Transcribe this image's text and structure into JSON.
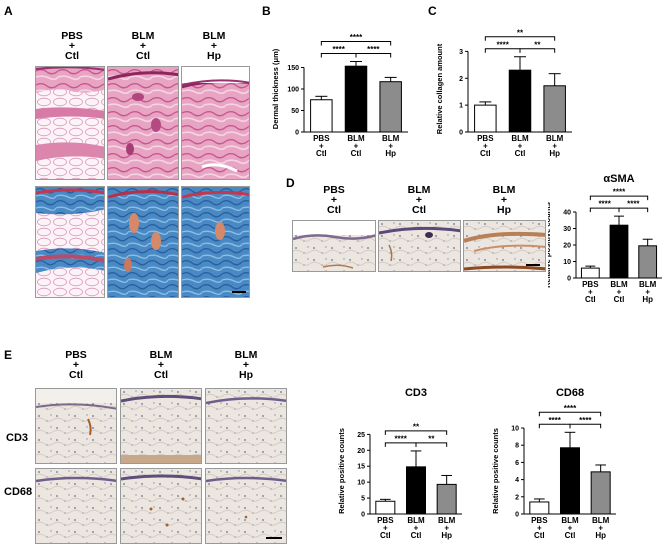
{
  "panels": {
    "A": {
      "letter": "A",
      "column_headers": [
        {
          "top": "PBS",
          "mid": "+",
          "bot": "Ctl"
        },
        {
          "top": "BLM",
          "mid": "+",
          "bot": "Ctl"
        },
        {
          "top": "BLM",
          "mid": "+",
          "bot": "Hp"
        }
      ]
    },
    "B": {
      "letter": "B"
    },
    "C": {
      "letter": "C"
    },
    "D": {
      "letter": "D",
      "column_headers": [
        {
          "top": "PBS",
          "mid": "+",
          "bot": "Ctl"
        },
        {
          "top": "BLM",
          "mid": "+",
          "bot": "Ctl"
        },
        {
          "top": "BLM",
          "mid": "+",
          "bot": "Hp"
        }
      ]
    },
    "E": {
      "letter": "E",
      "column_headers": [
        {
          "top": "PBS",
          "mid": "+",
          "bot": "Ctl"
        },
        {
          "top": "BLM",
          "mid": "+",
          "bot": "Ctl"
        },
        {
          "top": "BLM",
          "mid": "+",
          "bot": "Hp"
        }
      ],
      "row_labels": [
        "CD3",
        "CD68"
      ]
    }
  },
  "colors": {
    "white_bar": "#ffffff",
    "black_bar": "#000000",
    "gray_bar": "#8c8c8c",
    "he_pink": "#e5a3c0",
    "trichrome_blue": "#4a8ac4",
    "ihc_background": "#ece6e0"
  },
  "chart_data": [
    {
      "id": "B",
      "type": "bar",
      "categories": [
        [
          "PBS",
          "+",
          "Ctl"
        ],
        [
          "BLM",
          "+",
          "Ctl"
        ],
        [
          "BLM",
          "+",
          "Hp"
        ]
      ],
      "values": [
        75,
        153,
        117
      ],
      "errors": [
        8,
        11,
        10
      ],
      "ylabel": "Dermal thickness (μm)",
      "ylim": [
        0,
        200
      ],
      "yticks": [
        0,
        50,
        100,
        150
      ],
      "significance": [
        {
          "from": 0,
          "to": 1,
          "label": "****"
        },
        {
          "from": 1,
          "to": 2,
          "label": "****"
        },
        {
          "from": 0,
          "to": 2,
          "label": "****"
        }
      ]
    },
    {
      "id": "C",
      "type": "bar",
      "categories": [
        [
          "PBS",
          "+",
          "Ctl"
        ],
        [
          "BLM",
          "+",
          "Ctl"
        ],
        [
          "BLM",
          "+",
          "Hp"
        ]
      ],
      "values": [
        1.0,
        2.3,
        1.72
      ],
      "errors": [
        0.12,
        0.5,
        0.45
      ],
      "ylabel": "Relative collagen amount",
      "ylim": [
        0,
        3.2
      ],
      "yticks": [
        0,
        1,
        2,
        3
      ],
      "significance": [
        {
          "from": 0,
          "to": 1,
          "label": "****"
        },
        {
          "from": 1,
          "to": 2,
          "label": "**"
        },
        {
          "from": 0,
          "to": 2,
          "label": "**"
        }
      ]
    },
    {
      "id": "D",
      "type": "bar",
      "title": "αSMA",
      "categories": [
        [
          "PBS",
          "+",
          "Ctl"
        ],
        [
          "BLM",
          "+",
          "Ctl"
        ],
        [
          "BLM",
          "+",
          "Hp"
        ]
      ],
      "values": [
        6,
        32,
        19.5
      ],
      "errors": [
        1.2,
        5.5,
        4
      ],
      "ylabel": "Relative positive counts",
      "ylim": [
        0,
        40
      ],
      "yticks": [
        0,
        10,
        20,
        30,
        40
      ],
      "significance": [
        {
          "from": 0,
          "to": 1,
          "label": "****"
        },
        {
          "from": 1,
          "to": 2,
          "label": "****"
        },
        {
          "from": 0,
          "to": 2,
          "label": "****"
        }
      ]
    },
    {
      "id": "E1",
      "type": "bar",
      "title": "CD3",
      "categories": [
        [
          "PBS",
          "+",
          "Ctl"
        ],
        [
          "BLM",
          "+",
          "Ctl"
        ],
        [
          "BLM",
          "+",
          "Hp"
        ]
      ],
      "values": [
        4,
        14.8,
        9.3
      ],
      "errors": [
        0.6,
        5,
        2.8
      ],
      "ylabel": "Relative positive counts",
      "ylim": [
        0,
        27
      ],
      "yticks": [
        0,
        5,
        10,
        15,
        20,
        25
      ],
      "significance": [
        {
          "from": 0,
          "to": 1,
          "label": "****"
        },
        {
          "from": 1,
          "to": 2,
          "label": "**"
        },
        {
          "from": 0,
          "to": 2,
          "label": "**"
        }
      ]
    },
    {
      "id": "E2",
      "type": "bar",
      "title": "CD68",
      "categories": [
        [
          "PBS",
          "+",
          "Ctl"
        ],
        [
          "BLM",
          "+",
          "Ctl"
        ],
        [
          "BLM",
          "+",
          "Hp"
        ]
      ],
      "values": [
        1.4,
        7.7,
        4.9
      ],
      "errors": [
        0.35,
        1.8,
        0.8
      ],
      "ylabel": "Relative positive counts",
      "ylim": [
        0,
        10
      ],
      "yticks": [
        0,
        2,
        4,
        6,
        8,
        10
      ],
      "significance": [
        {
          "from": 0,
          "to": 1,
          "label": "****"
        },
        {
          "from": 1,
          "to": 2,
          "label": "****"
        },
        {
          "from": 0,
          "to": 2,
          "label": "****"
        }
      ]
    }
  ]
}
